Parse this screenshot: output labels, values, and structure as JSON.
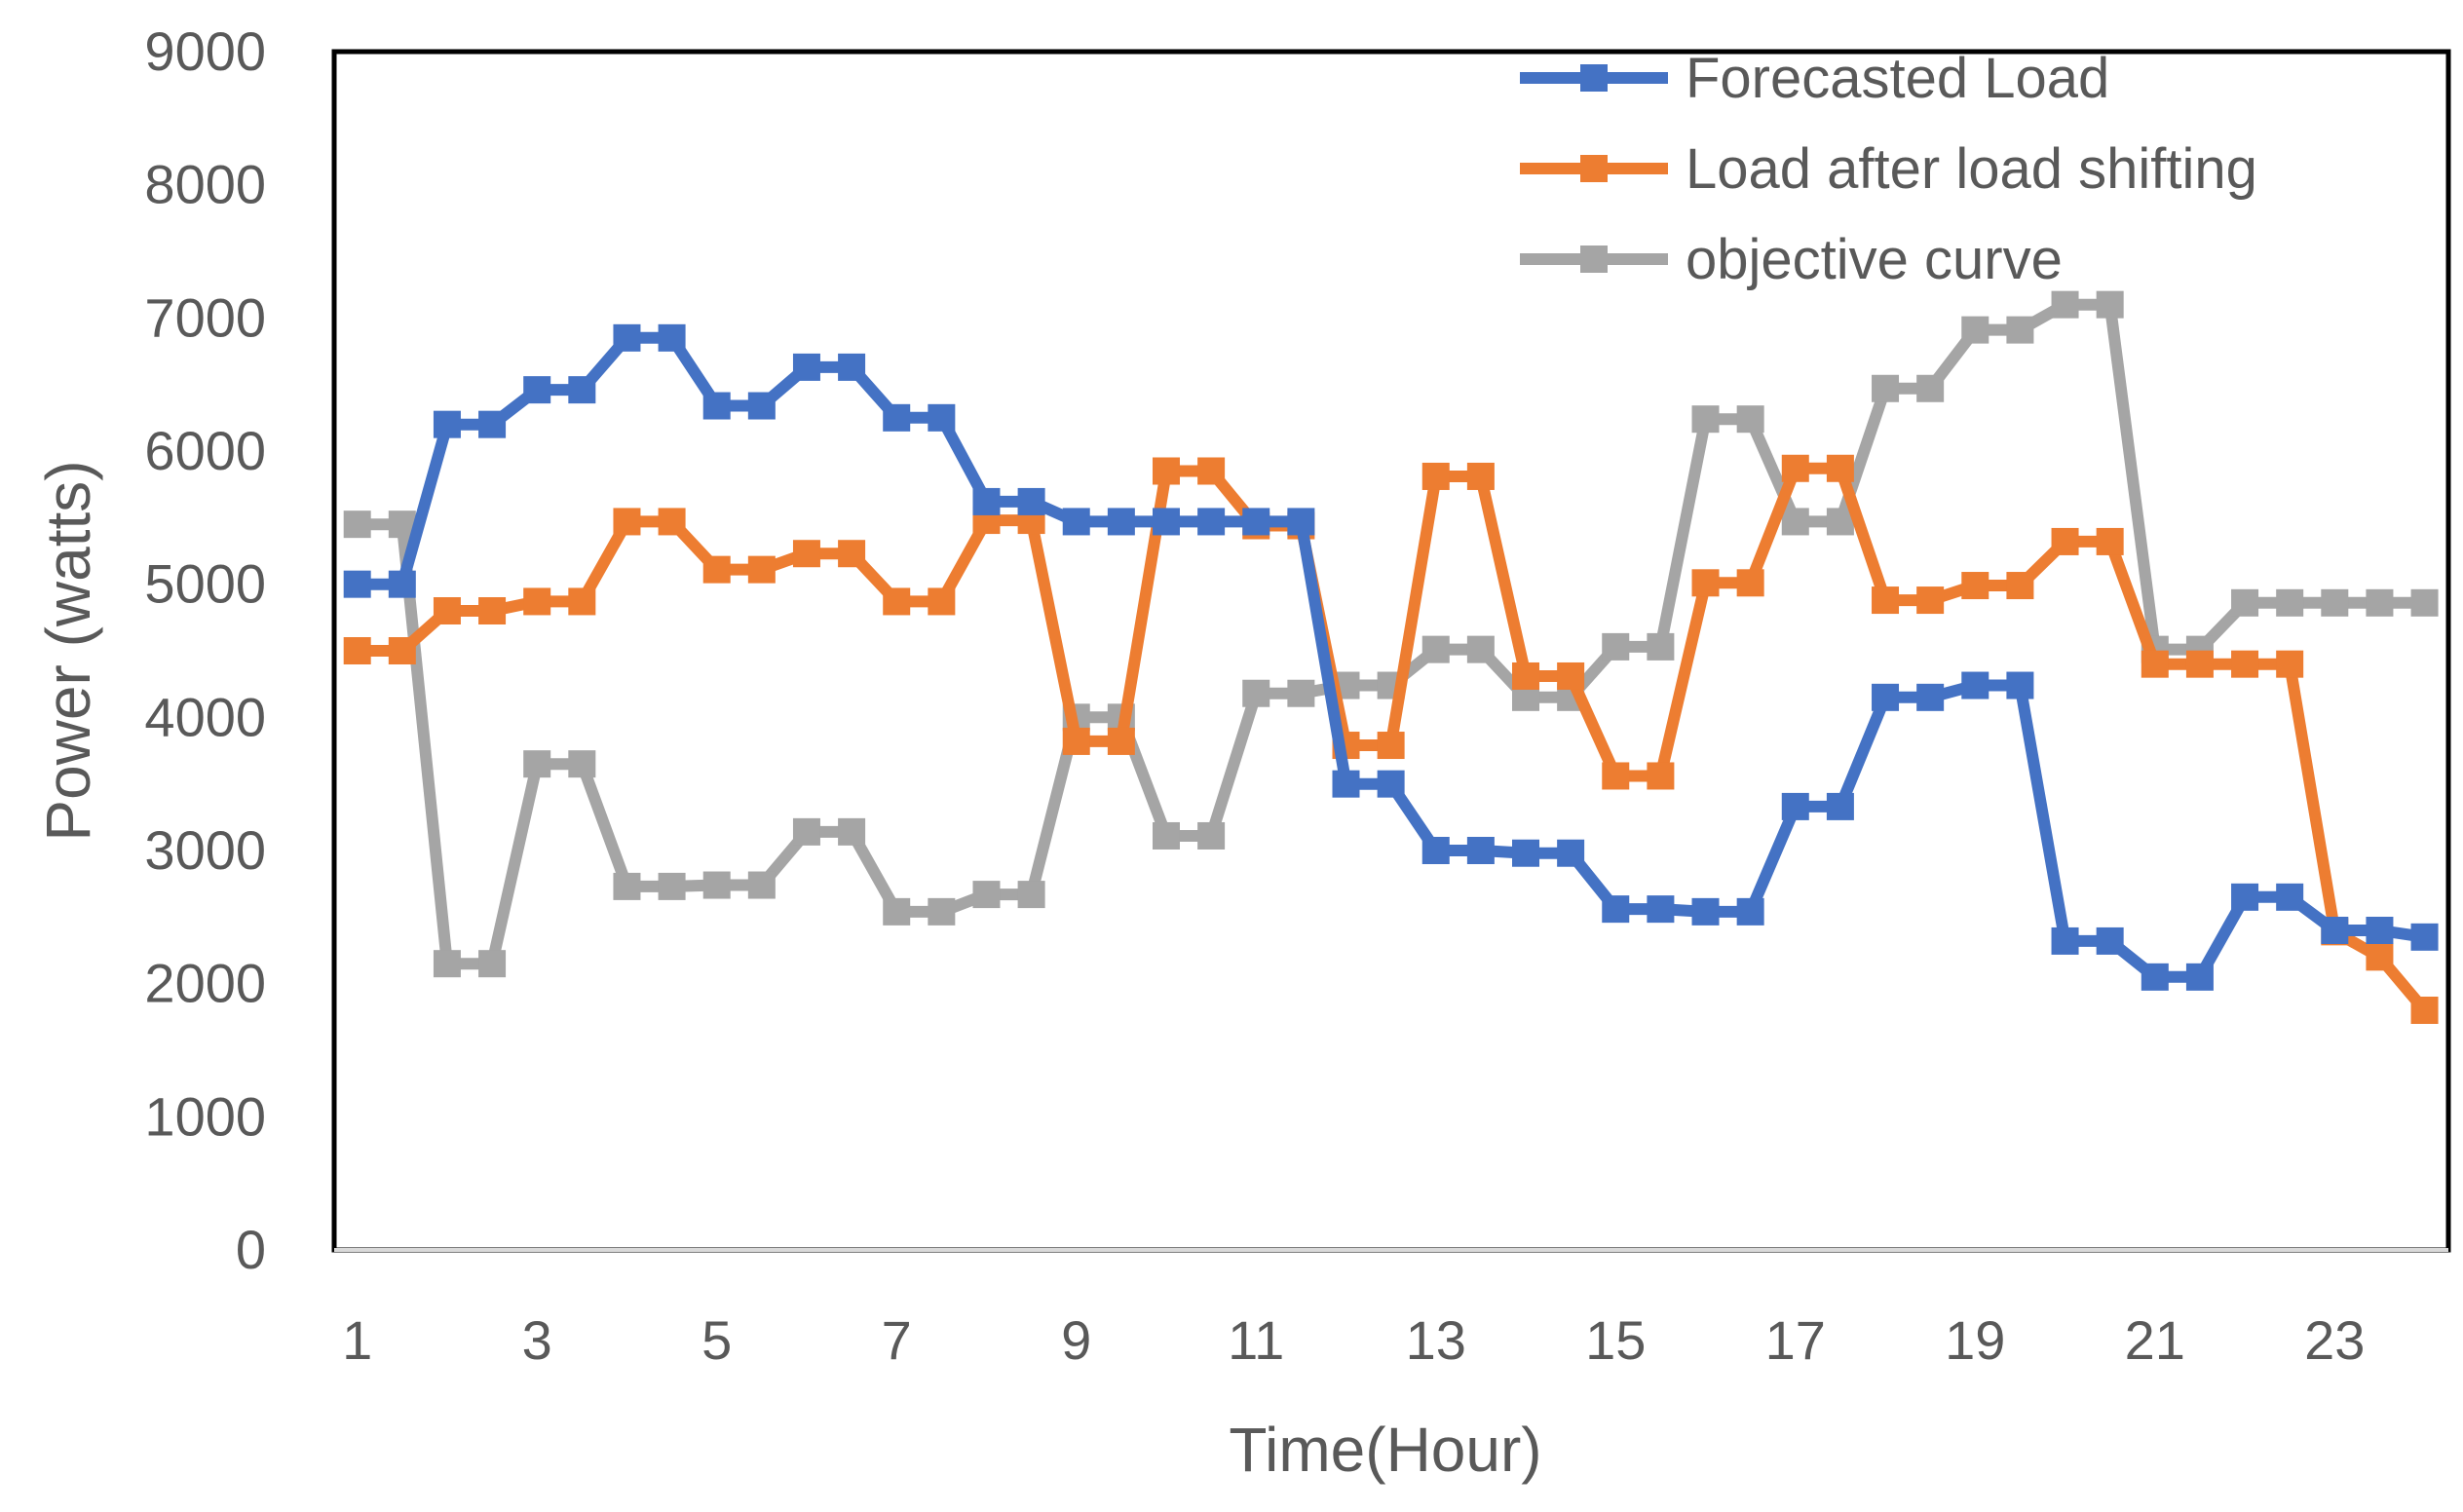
{
  "chart_data": {
    "type": "line",
    "title": "",
    "xlabel": "Time(Hour)",
    "ylabel": "Power (watts)",
    "ylim": [
      0,
      9000
    ],
    "yticks": [
      0,
      1000,
      2000,
      3000,
      4000,
      5000,
      6000,
      7000,
      8000,
      9000
    ],
    "xlim": [
      1,
      24.5
    ],
    "xticks": [
      1,
      3,
      5,
      7,
      9,
      11,
      13,
      15,
      17,
      19,
      21,
      23
    ],
    "legend_position": "top-right",
    "grid": false,
    "x": [
      1,
      1.5,
      2,
      2.5,
      3,
      3.5,
      4,
      4.5,
      5,
      5.5,
      6,
      6.5,
      7,
      7.5,
      8,
      8.5,
      9,
      9.5,
      10,
      10.5,
      11,
      11.5,
      12,
      12.5,
      13,
      13.5,
      14,
      14.5,
      15,
      15.5,
      16,
      16.5,
      17,
      17.5,
      18,
      18.5,
      19,
      19.5,
      20,
      20.5,
      21,
      21.5,
      22,
      22.5,
      23,
      23.5,
      24
    ],
    "series": [
      {
        "name": "Forecasted Load",
        "color": "#4472C4",
        "values": [
          5000,
          5000,
          6200,
          6200,
          6460,
          6460,
          6850,
          6850,
          6340,
          6340,
          6630,
          6630,
          6250,
          6250,
          5620,
          5620,
          5470,
          5470,
          5470,
          5470,
          5470,
          5470,
          3500,
          3500,
          3000,
          3000,
          2980,
          2980,
          2560,
          2560,
          2540,
          2540,
          3330,
          3330,
          4150,
          4150,
          4240,
          4240,
          2320,
          2320,
          2050,
          2050,
          2650,
          2650,
          2400,
          2400,
          2350
        ]
      },
      {
        "name": "Load after load shifting",
        "color": "#ED7D31",
        "values": [
          4500,
          4500,
          4800,
          4800,
          4870,
          4870,
          5470,
          5470,
          5110,
          5110,
          5230,
          5230,
          4870,
          4870,
          5480,
          5480,
          3820,
          3820,
          5850,
          5850,
          5440,
          5440,
          3790,
          3790,
          5810,
          5810,
          4310,
          4310,
          3560,
          3560,
          5010,
          5010,
          5870,
          5870,
          4880,
          4880,
          4990,
          4990,
          5320,
          5320,
          4400,
          4400,
          4400,
          4400,
          2390,
          2200,
          1800
        ]
      },
      {
        "name": "objective curve",
        "color": "#A5A5A5",
        "values": [
          5450,
          5450,
          2150,
          2150,
          3650,
          3650,
          2730,
          2730,
          2740,
          2740,
          3140,
          3140,
          2540,
          2540,
          2670,
          2670,
          4000,
          4000,
          3110,
          3110,
          4180,
          4180,
          4240,
          4240,
          4510,
          4510,
          4150,
          4150,
          4530,
          4530,
          6240,
          6240,
          5470,
          5470,
          6470,
          6470,
          6910,
          6910,
          7100,
          7100,
          4510,
          4510,
          4860,
          4860,
          4860,
          4860,
          4860
        ]
      }
    ]
  }
}
